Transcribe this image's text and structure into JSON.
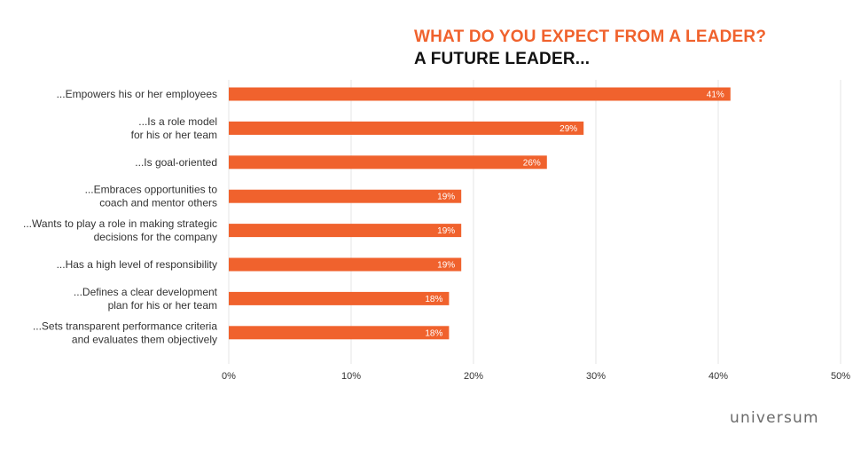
{
  "chart_data": {
    "type": "bar",
    "orientation": "horizontal",
    "title": "WHAT DO YOU EXPECT FROM A LEADER?",
    "subtitle": "A FUTURE LEADER...",
    "categories": [
      [
        "...Empowers his or her employees"
      ],
      [
        "...Is a role model",
        "for his or her team"
      ],
      [
        "...Is goal-oriented"
      ],
      [
        "...Embraces opportunities to",
        "coach and mentor others"
      ],
      [
        "...Wants to play a role in making strategic",
        "decisions for the company"
      ],
      [
        "...Has a high level of responsibility"
      ],
      [
        "...Defines a clear development",
        "plan for his or her team"
      ],
      [
        "...Sets transparent performance criteria",
        "and evaluates them objectively"
      ]
    ],
    "values": [
      41,
      29,
      26,
      19,
      19,
      19,
      18,
      18
    ],
    "value_labels": [
      "41%",
      "29%",
      "26%",
      "19%",
      "19%",
      "19%",
      "18%",
      "18%"
    ],
    "xlim": [
      0,
      50
    ],
    "x_ticks": [
      0,
      10,
      20,
      30,
      40,
      50
    ],
    "x_tick_labels": [
      "0%",
      "10%",
      "20%",
      "30%",
      "40%",
      "50%"
    ],
    "grid": true,
    "bar_color": "#f0622d"
  },
  "branding": {
    "logo_text": "universum"
  }
}
